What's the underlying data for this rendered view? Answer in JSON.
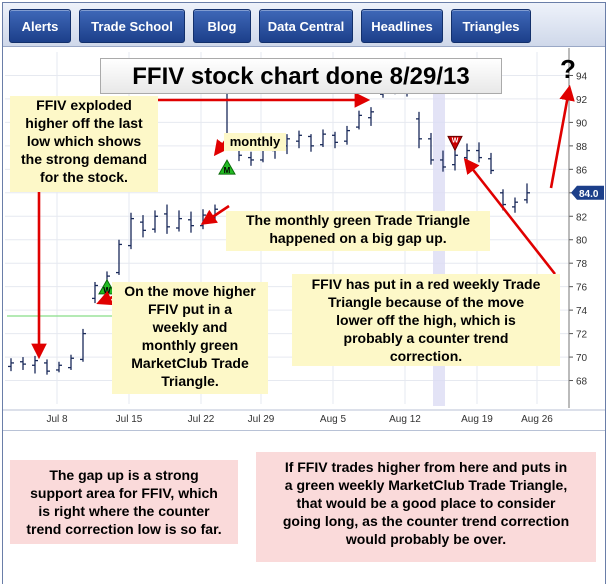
{
  "nav": {
    "tabs": [
      {
        "label": "Alerts"
      },
      {
        "label": "Trade School"
      },
      {
        "label": "Blog"
      },
      {
        "label": "Data Central"
      },
      {
        "label": "Headlines"
      },
      {
        "label": "Triangles"
      }
    ]
  },
  "title": "FFIV stock chart done 8/29/13",
  "question_mark": "?",
  "callouts": {
    "exploded": "FFIV exploded\nhigher off the last\nlow which shows\nthe strong demand\nfor the stock.",
    "monthly_label": "monthly",
    "monthly_gap": "The monthly green Trade Triangle\nhappened  on a big gap up.",
    "move_higher": "On the move higher\nFFIV put in a\nweekly and\nmonthly green\nMarketClub Trade\nTriangle.",
    "red_weekly": "FFIV has put in a red weekly Trade\nTriangle because of the move\nlower off the high, which is\nprobably a counter trend\ncorrection.",
    "gap_support": "The gap up is a strong\nsupport area for FFIV, which\nis right where the counter\ntrend correction low is so far.",
    "if_trades_higher": "If FFIV trades higher from here and puts in\na green weekly MarketClub Trade Triangle,\nthat would be a good place to consider\ngoing long, as the counter trend correction\nwould probably be over."
  },
  "colors": {
    "nav_tab": "#1c3f8a",
    "callout_bg": "#fdf8c8",
    "pink_bg": "#fadada",
    "arrow": "#e00000",
    "green_triangle": "#22bb22",
    "red_triangle": "#cc0000",
    "price_bar": "#1a2a5a",
    "support_line": "#88dd88"
  },
  "chart_data": {
    "type": "ohlc",
    "title": "FFIV stock chart done 8/29/13",
    "ylim": [
      66,
      96
    ],
    "y_ticks": [
      68,
      70,
      72,
      74,
      76,
      78,
      80,
      82,
      84,
      86,
      88,
      90,
      92,
      94
    ],
    "x_ticks": [
      "Jul 8",
      "Jul 15",
      "Jul 22",
      "Jul 29",
      "Aug 5",
      "Aug 12",
      "Aug 19",
      "Aug 26"
    ],
    "last_price_label": "84.0",
    "support_level": 73.5,
    "bars": [
      {
        "h": 69.9,
        "l": 68.8,
        "o": 69.2,
        "c": 69.5
      },
      {
        "h": 70.0,
        "l": 68.9,
        "o": 69.6,
        "c": 69.4
      },
      {
        "h": 70.1,
        "l": 68.6,
        "o": 69.3,
        "c": 69.7
      },
      {
        "h": 69.8,
        "l": 68.5,
        "o": 69.5,
        "c": 68.8
      },
      {
        "h": 69.6,
        "l": 68.7,
        "o": 68.9,
        "c": 69.3
      },
      {
        "h": 70.2,
        "l": 68.9,
        "o": 69.1,
        "c": 69.9
      },
      {
        "h": 72.4,
        "l": 69.6,
        "o": 69.8,
        "c": 72.0
      },
      {
        "h": 76.4,
        "l": 74.6,
        "o": 75.0,
        "c": 76.1
      },
      {
        "h": 77.3,
        "l": 75.5,
        "o": 75.8,
        "c": 76.9
      },
      {
        "h": 80.0,
        "l": 77.0,
        "o": 77.2,
        "c": 79.6
      },
      {
        "h": 82.3,
        "l": 79.2,
        "o": 79.5,
        "c": 81.8
      },
      {
        "h": 82.1,
        "l": 80.2,
        "o": 81.5,
        "c": 80.8
      },
      {
        "h": 82.5,
        "l": 80.6,
        "o": 80.9,
        "c": 82.0
      },
      {
        "h": 83.0,
        "l": 80.5,
        "o": 82.2,
        "c": 81.1
      },
      {
        "h": 82.5,
        "l": 80.7,
        "o": 81.0,
        "c": 81.8
      },
      {
        "h": 82.4,
        "l": 80.6,
        "o": 81.7,
        "c": 81.2
      },
      {
        "h": 82.6,
        "l": 80.9,
        "o": 81.2,
        "c": 82.1
      },
      {
        "h": 83.0,
        "l": 81.5,
        "o": 81.8,
        "c": 82.6
      },
      {
        "h": 93.2,
        "l": 87.8,
        "o": 88.0,
        "c": 88.6
      },
      {
        "h": 88.9,
        "l": 86.7,
        "o": 88.4,
        "c": 87.2
      },
      {
        "h": 87.5,
        "l": 86.3,
        "o": 87.0,
        "c": 86.8
      },
      {
        "h": 88.3,
        "l": 86.6,
        "o": 86.8,
        "c": 87.9
      },
      {
        "h": 88.8,
        "l": 86.9,
        "o": 87.6,
        "c": 88.2
      },
      {
        "h": 89.0,
        "l": 87.3,
        "o": 88.0,
        "c": 88.6
      },
      {
        "h": 89.3,
        "l": 87.8,
        "o": 88.4,
        "c": 88.9
      },
      {
        "h": 89.0,
        "l": 87.5,
        "o": 88.8,
        "c": 88.0
      },
      {
        "h": 89.4,
        "l": 87.9,
        "o": 88.1,
        "c": 89.0
      },
      {
        "h": 89.2,
        "l": 87.8,
        "o": 88.9,
        "c": 88.3
      },
      {
        "h": 89.7,
        "l": 88.1,
        "o": 88.4,
        "c": 89.3
      },
      {
        "h": 91.0,
        "l": 89.4,
        "o": 89.6,
        "c": 90.6
      },
      {
        "h": 91.3,
        "l": 89.7,
        "o": 90.4,
        "c": 90.9
      },
      {
        "h": 94.4,
        "l": 92.1,
        "o": 92.4,
        "c": 93.6
      },
      {
        "h": 94.0,
        "l": 92.4,
        "o": 93.5,
        "c": 92.8
      },
      {
        "h": 93.7,
        "l": 92.2,
        "o": 92.7,
        "c": 93.2
      },
      {
        "h": 90.9,
        "l": 87.8,
        "o": 90.3,
        "c": 88.6
      },
      {
        "h": 89.1,
        "l": 86.4,
        "o": 88.6,
        "c": 86.8
      },
      {
        "h": 87.6,
        "l": 85.8,
        "o": 86.8,
        "c": 86.2
      },
      {
        "h": 87.8,
        "l": 85.9,
        "o": 86.4,
        "c": 87.2
      },
      {
        "h": 88.2,
        "l": 86.4,
        "o": 87.0,
        "c": 87.6
      },
      {
        "h": 88.3,
        "l": 86.6,
        "o": 87.6,
        "c": 87.0
      },
      {
        "h": 87.4,
        "l": 85.6,
        "o": 86.9,
        "c": 85.9
      },
      {
        "h": 84.3,
        "l": 82.5,
        "o": 84.0,
        "c": 83.0
      },
      {
        "h": 83.6,
        "l": 82.3,
        "o": 82.8,
        "c": 83.2
      },
      {
        "h": 84.8,
        "l": 83.1,
        "o": 83.4,
        "c": 84.0
      }
    ],
    "triangles": [
      {
        "type": "weekly-green",
        "bar": 8,
        "value": 75.9,
        "label": "W"
      },
      {
        "type": "monthly-green",
        "bar": 18,
        "value": 86.1,
        "label": "M"
      },
      {
        "type": "weekly-red",
        "bar": 37,
        "value": 88.3,
        "label": "W"
      }
    ]
  }
}
